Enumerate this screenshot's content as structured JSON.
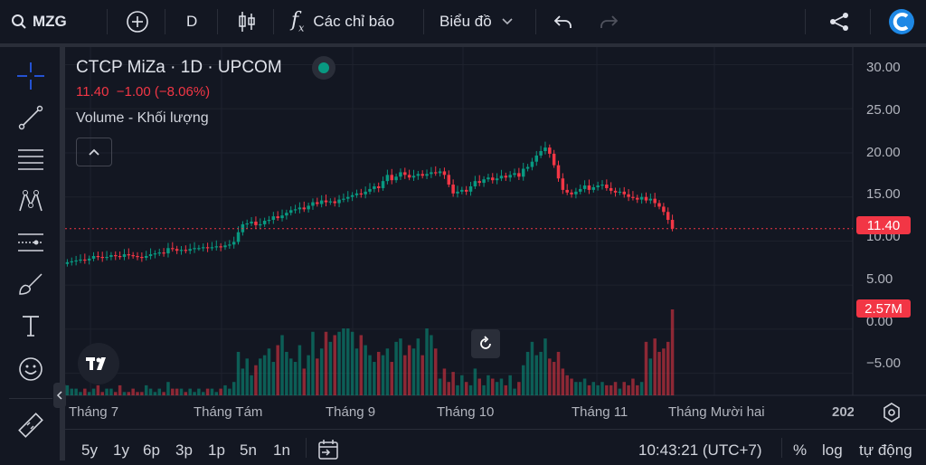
{
  "toolbar": {
    "symbol": "MZG",
    "interval": "D",
    "indicators_label": "Các chỉ báo",
    "chart_type_label": "Biểu đồ"
  },
  "legend": {
    "title": "CTCP MiZa · 1D · UPCOM",
    "price_line": "11.40  −1.00 (−8.06%)",
    "volume_label": "Volume - Khối lượng"
  },
  "price_axis": {
    "labels": [
      "30.00",
      "25.00",
      "20.00",
      "15.00",
      "10.00",
      "5.00",
      "0.00",
      "−5.00"
    ],
    "last_price_tag": "11.40",
    "volume_tag": "2.57M"
  },
  "time_axis": {
    "labels": [
      "Tháng 7",
      "Tháng Tám",
      "Tháng 9",
      "Tháng 10",
      "Tháng 11",
      "Tháng Mười hai",
      "202"
    ]
  },
  "bottom": {
    "ranges": [
      "5y",
      "1y",
      "6p",
      "3p",
      "1p",
      "5n",
      "1n"
    ],
    "clock": "10:43:21 (UTC+7)",
    "percent": "%",
    "log": "log",
    "auto": "tự động"
  },
  "colors": {
    "up": "#089981",
    "down": "#f23645",
    "bg": "#131722",
    "accent": "#2962ff"
  },
  "chart_data": {
    "type": "candlestick",
    "y_range": [
      -7.5,
      32
    ],
    "close": [
      7.6,
      7.7,
      7.8,
      7.9,
      7.8,
      8.0,
      8.3,
      8.2,
      8.1,
      8.2,
      8.4,
      8.3,
      8.2,
      8.5,
      8.4,
      8.3,
      8.2,
      8.1,
      8.3,
      8.5,
      8.6,
      8.7,
      8.6,
      9.2,
      9.1,
      8.9,
      9.0,
      8.9,
      9.1,
      9.2,
      9.2,
      9.3,
      9.2,
      9.3,
      9.4,
      9.3,
      9.5,
      9.6,
      9.9,
      11.0,
      11.9,
      12.0,
      12.2,
      11.8,
      11.9,
      12.3,
      12.4,
      12.8,
      12.6,
      12.9,
      13.2,
      13.5,
      13.6,
      13.8,
      13.6,
      14.0,
      14.4,
      14.2,
      14.6,
      14.4,
      14.5,
      14.3,
      14.7,
      14.8,
      15.0,
      15.2,
      15.4,
      15.3,
      15.6,
      15.9,
      16.2,
      16.0,
      16.8,
      17.5,
      16.9,
      17.3,
      17.8,
      17.5,
      17.2,
      17.4,
      17.6,
      17.4,
      17.6,
      17.8,
      17.7,
      17.9,
      17.5,
      16.4,
      15.4,
      15.6,
      15.8,
      15.6,
      16.2,
      16.8,
      16.6,
      17.0,
      17.2,
      16.9,
      17.1,
      17.4,
      17.2,
      17.5,
      17.7,
      17.3,
      18.2,
      18.4,
      19.0,
      19.7,
      20.2,
      20.6,
      19.9,
      18.6,
      17.1,
      15.8,
      15.5,
      15.3,
      15.6,
      15.9,
      16.3,
      15.8,
      16.1,
      16.3,
      16.4,
      16.0,
      15.7,
      15.5,
      15.6,
      15.3,
      15.0,
      14.9,
      14.7,
      15.0,
      14.6,
      14.8,
      14.3,
      13.9,
      13.3,
      12.4,
      11.4
    ],
    "volume_m": [
      0.3,
      0.2,
      0.2,
      0.1,
      0.2,
      0.1,
      0.2,
      0.3,
      0.1,
      0.2,
      0.2,
      0.1,
      0.3,
      0.1,
      0.1,
      0.2,
      0.1,
      0.1,
      0.3,
      0.2,
      0.1,
      0.2,
      0.1,
      0.4,
      0.2,
      0.2,
      0.2,
      0.1,
      0.2,
      0.1,
      0.2,
      0.1,
      0.2,
      0.2,
      0.1,
      0.2,
      0.3,
      0.2,
      0.4,
      1.3,
      0.8,
      1.1,
      0.6,
      0.9,
      1.1,
      1.2,
      1.4,
      1.0,
      1.5,
      1.8,
      1.3,
      1.1,
      1.0,
      1.5,
      0.8,
      1.2,
      1.9,
      1.1,
      1.4,
      1.9,
      1.6,
      1.8,
      1.9,
      2.0,
      2.0,
      1.9,
      1.4,
      1.8,
      1.5,
      1.2,
      1.0,
      1.3,
      1.2,
      1.4,
      1.0,
      1.6,
      1.7,
      1.2,
      1.5,
      1.4,
      1.7,
      1.2,
      2.0,
      1.8,
      1.4,
      0.5,
      0.8,
      0.4,
      0.7,
      0.3,
      0.6,
      0.4,
      0.3,
      0.8,
      0.5,
      0.3,
      0.6,
      0.5,
      0.4,
      0.5,
      0.3,
      0.6,
      0.2,
      0.4,
      0.9,
      1.3,
      1.6,
      1.2,
      1.3,
      1.7,
      1.1,
      1.0,
      1.3,
      0.8,
      0.6,
      0.5,
      0.4,
      0.4,
      0.5,
      0.3,
      0.4,
      0.3,
      0.4,
      0.3,
      0.3,
      0.4,
      0.2,
      0.4,
      0.3,
      0.5,
      0.3,
      0.4,
      1.6,
      1.1,
      1.7,
      1.3,
      1.4,
      1.6,
      2.57
    ]
  }
}
